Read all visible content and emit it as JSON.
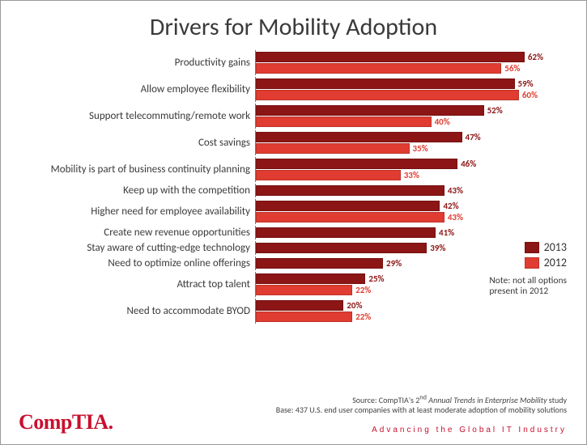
{
  "title": "Drivers for Mobility Adoption",
  "chart": {
    "type": "bar",
    "orientation": "horizontal",
    "max_value": 65,
    "series": [
      {
        "name": "2013",
        "color": "#8c1515"
      },
      {
        "name": "2012",
        "color": "#e03c31"
      }
    ],
    "label_color_2013": "#8c1515",
    "label_color_2012": "#e03c31",
    "categories": [
      {
        "label": "Productivity gains",
        "v2013": 62,
        "v2012": 56
      },
      {
        "label": "Allow employee flexibility",
        "v2013": 59,
        "v2012": 60
      },
      {
        "label": "Support telecommuting/remote work",
        "v2013": 52,
        "v2012": 40
      },
      {
        "label": "Cost savings",
        "v2013": 47,
        "v2012": 35
      },
      {
        "label": "Mobility is part of business continuity planning",
        "v2013": 46,
        "v2012": 33
      },
      {
        "label": "Keep up with the competition",
        "v2013": 43,
        "v2012": null
      },
      {
        "label": "Higher need for employee availability",
        "v2013": 42,
        "v2012": 43
      },
      {
        "label": "Create new revenue opportunities",
        "v2013": 41,
        "v2012": null
      },
      {
        "label": "Stay aware of cutting-edge technology",
        "v2013": 39,
        "v2012": null
      },
      {
        "label": "Need to optimize online offerings",
        "v2013": 29,
        "v2012": null
      },
      {
        "label": "Attract top talent",
        "v2013": 25,
        "v2012": 22
      },
      {
        "label": "Need to accommodate BYOD",
        "v2013": 20,
        "v2012": 22
      }
    ]
  },
  "legend": {
    "s2013": "2013",
    "s2012": "2012"
  },
  "note_line1": "Note: not all options",
  "note_line2": "present in 2012",
  "source_line1": "Source: CompTIA's 2ⁿᵈ Annual Trends in Enterprise Mobility study",
  "source_line2": "Base: 437 U.S. end user companies with at least moderate adoption of mobility solutions",
  "logo": "CompTIA",
  "tagline": "Advancing the Global IT Industry"
}
